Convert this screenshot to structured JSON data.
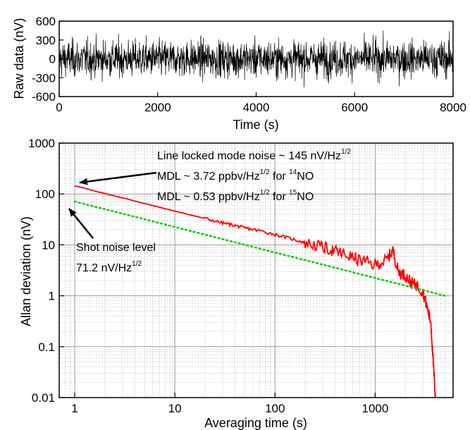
{
  "chart_data": [
    {
      "type": "line",
      "xlabel": "Time (s)",
      "ylabel": "Raw data (nV)",
      "xlim": [
        0,
        8000
      ],
      "ylim": [
        -600,
        600
      ],
      "x_ticks": [
        "0",
        "2000",
        "4000",
        "6000",
        "8000"
      ],
      "y_ticks": [
        "600",
        "300",
        "0",
        "-300",
        "-600"
      ],
      "grid": false,
      "series": [
        {
          "color": "#000000",
          "marker": "dot",
          "description_values": {
            "x_range": [
              0,
              8000
            ],
            "mean": 0,
            "typical_amplitude": 145,
            "extreme_range": [
              -450,
              450
            ]
          }
        }
      ]
    },
    {
      "type": "line",
      "xlabel": "Averaging time (s)",
      "ylabel": "Allan deviation (nV)",
      "xscale": "log",
      "yscale": "log",
      "xlim": [
        0.7,
        6000
      ],
      "ylim": [
        0.01,
        1000
      ],
      "x_ticks": [
        "1",
        "10",
        "100",
        "1000"
      ],
      "y_ticks": [
        "1000",
        "100",
        "10",
        "1",
        "0.1",
        "0.01"
      ],
      "grid": true,
      "series": [
        {
          "color": "#ff0000",
          "style": "solid",
          "x": [
            1,
            1.5,
            2,
            3,
            5,
            7,
            10,
            15,
            20,
            30,
            40,
            50,
            70,
            100,
            150,
            200,
            300,
            400,
            500,
            700,
            1000,
            1300,
            1500,
            1700,
            2000,
            2300,
            2600,
            3000,
            3300,
            3600,
            3800,
            4000
          ],
          "y": [
            145,
            118,
            102,
            84,
            65,
            55,
            46,
            38,
            33,
            27,
            24,
            21.5,
            19,
            16,
            13,
            11,
            9,
            7.5,
            6.5,
            5,
            4,
            5,
            8,
            3,
            2.5,
            1.8,
            1.6,
            1.2,
            0.6,
            0.3,
            0.05,
            0.01
          ]
        },
        {
          "color": "#00cc00",
          "style": "dotted",
          "x": [
            1,
            5000
          ],
          "y": [
            71.2,
            1.0
          ]
        }
      ],
      "annotations": {
        "line1": "Line locked mode noise ~ 145 nV/Hz",
        "line1_sup": "1/2",
        "line2_a": "MDL ~ 3.72 ppbv/Hz",
        "line2_sup": "1/2",
        "line2_b": " for ",
        "line2_iso": "14",
        "line2_c": "NO",
        "line3_a": "MDL ~ 0.53 ppbv/Hz",
        "line3_sup": "1/2",
        "line3_b": " for ",
        "line3_iso": "15",
        "line3_c": "NO",
        "shot1": "Shot noise level",
        "shot2": "71.2 nV/Hz",
        "shot2_sup": "1/2"
      }
    }
  ]
}
